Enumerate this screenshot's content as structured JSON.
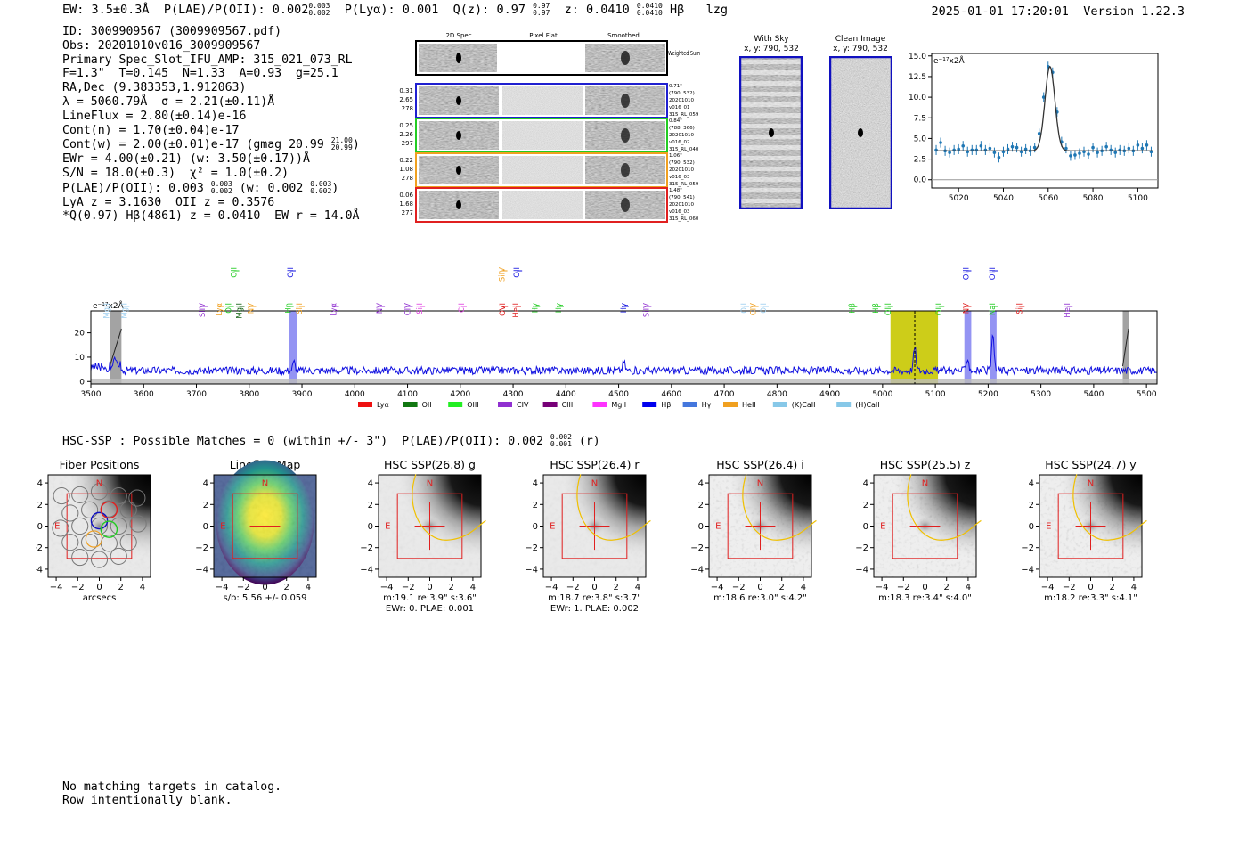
{
  "header": {
    "ew": "EW: 3.5±0.3Å",
    "plae": "P(LAE)/P(OII): 0.002",
    "plae_hi": "0.003",
    "plae_lo": "0.002",
    "plya": "P(Lyα): 0.001",
    "qz": "Q(z): 0.97",
    "qz_hi": "0.97",
    "qz_lo": "0.97",
    "z": "z: 0.0410",
    "z_hi": "0.0410",
    "z_lo": "0.0410",
    "line": "Hβ   lzg",
    "timestamp": "2025-01-01 17:20:01",
    "version": "Version 1.22.3"
  },
  "info": {
    "id": "ID: 3009909567 (3009909567.pdf)",
    "obs": "Obs: 20201010v016_3009909567",
    "primary": "Primary Spec_Slot_IFU_AMP: 315_021_073_RL",
    "params": "F=1.3\"  T=0.145  N=1.33  A=0.93  g=25.1",
    "radec": "RA,Dec (9.383353,1.912063)",
    "lambda": "λ = 5060.79Å  σ = 2.21(±0.11)Å",
    "lineflux": "LineFlux = 2.80(±0.14)e-16",
    "contn": "Cont(n) = 1.70(±0.04)e-17",
    "contw": "Cont(w) = 2.00(±0.01)e-17 (gmag 20.99",
    "contw_hi": "21.00",
    "contw_lo": "20.99",
    "contw_end": ")",
    "ewr": "EWr = 4.00(±0.21) (w: 3.50(±0.17))Å",
    "sn": "S/N = 18.0(±0.3)  χ² = 1.0(±0.2)",
    "plae2": "P(LAE)/P(OII): 0.003",
    "plae2_hi": "0.003",
    "plae2_lo": "0.002",
    "plae2_w": "(w: 0.002",
    "plae2_w_hi": "0.003",
    "plae2_w_lo": "0.002",
    "plae2_end": ")",
    "lya": "LyA z = 3.1630  OII z = 0.3576",
    "q": "*Q(0.97) Hβ(4861) z = 0.0410  EW r = 14.0Å"
  },
  "cutouts": {
    "col_titles": [
      "2D Spec",
      "Pixel Flat",
      "Smoothed"
    ],
    "weighted_sum_label": "Weighted Sum",
    "rows": [
      {
        "left": [
          "0.31",
          "2.65",
          "278"
        ],
        "right": [
          "0.71\"",
          "(790, 532)",
          "20201010",
          "v016_01",
          "315_RL_059"
        ],
        "color": "#1f1fd0"
      },
      {
        "left": [
          "0.25",
          "2.26",
          "297"
        ],
        "right": [
          "0.84\"",
          "(788, 366)",
          "20201010",
          "v016_02",
          "315_RL_040"
        ],
        "color": "#22cc22"
      },
      {
        "left": [
          "0.22",
          "1.08",
          "278"
        ],
        "right": [
          "1.06\"",
          "(790, 532)",
          "20201010",
          "v016_03",
          "315_RL_059"
        ],
        "color": "#f0a020"
      },
      {
        "left": [
          "0.06",
          "1.68",
          "277"
        ],
        "right": [
          "1.48\"",
          "(790, 541)",
          "20201010",
          "v016_03",
          "315_RL_060"
        ],
        "color": "#e02020"
      }
    ]
  },
  "sky": {
    "with_sky_title": "With Sky",
    "with_sky_xy": "x, y: 790, 532",
    "clean_title": "Clean Image",
    "clean_xy": "x, y: 790, 532"
  },
  "colors": {
    "spectrum": "#1010e0",
    "fit_point": "#1f77b4",
    "highlight_yellow": "#c8c800",
    "highlight_blue": "#6666ee",
    "red_box": "#e02020",
    "ellipse": "#f0c000"
  },
  "line_labels": [
    {
      "name": "MgII",
      "w": 3535,
      "color": "#a0d0f0",
      "row": 2
    },
    {
      "name": "MgII",
      "w": 3568,
      "color": "#a0d0f0",
      "row": 2
    },
    {
      "name": "SiIV",
      "w": 3716,
      "color": "#9030d0",
      "row": 2
    },
    {
      "name": "Lyα",
      "w": 3748,
      "color": "#f0a020",
      "row": 2
    },
    {
      "name": "OII",
      "w": 3766,
      "color": "#22cc22",
      "row": 2
    },
    {
      "name": "MgII",
      "w": 3786,
      "color": "#106010",
      "row": 2
    },
    {
      "name": "NV",
      "w": 3808,
      "color": "#f0a020",
      "row": 2
    },
    {
      "name": "OII",
      "w": 3776,
      "color": "#22cc22",
      "row": 1
    },
    {
      "name": "OII",
      "w": 3883,
      "color": "#1010e0",
      "row": 1
    },
    {
      "name": "Hη",
      "w": 3879,
      "color": "#22cc22",
      "row": 2
    },
    {
      "name": "SiII",
      "w": 3900,
      "color": "#f0a020",
      "row": 2
    },
    {
      "name": "Lyα",
      "w": 3965,
      "color": "#9030d0",
      "row": 2
    },
    {
      "name": "NV",
      "w": 4052,
      "color": "#9030d0",
      "row": 2
    },
    {
      "name": "CIV",
      "w": 4105,
      "color": "#9030d0",
      "row": 2
    },
    {
      "name": "SiII",
      "w": 4128,
      "color": "#e040e0",
      "row": 2
    },
    {
      "name": "CII",
      "w": 4207,
      "color": "#e040e0",
      "row": 2
    },
    {
      "name": "SiIV",
      "w": 4284,
      "color": "#f0a020",
      "row": 1
    },
    {
      "name": "OII",
      "w": 4312,
      "color": "#1010e0",
      "row": 1
    },
    {
      "name": "OVI",
      "w": 4285,
      "color": "#e02020",
      "row": 2
    },
    {
      "name": "HeII",
      "w": 4310,
      "color": "#e02020",
      "row": 2
    },
    {
      "name": "Hγ",
      "w": 4346,
      "color": "#22cc22",
      "row": 2
    },
    {
      "name": "Hγ",
      "w": 4391,
      "color": "#22cc22",
      "row": 2
    },
    {
      "name": "Hγ",
      "w": 4514,
      "color": "#1010e0",
      "row": 2
    },
    {
      "name": "SiIV",
      "w": 4557,
      "color": "#9030d0",
      "row": 2
    },
    {
      "name": "OII",
      "w": 4742,
      "color": "#a0d0f0",
      "row": 2
    },
    {
      "name": "CIV",
      "w": 4760,
      "color": "#f0a020",
      "row": 2
    },
    {
      "name": "OII",
      "w": 4779,
      "color": "#a0d0f0",
      "row": 2
    },
    {
      "name": "Hβ",
      "w": 4947,
      "color": "#22cc22",
      "row": 2
    },
    {
      "name": "Hβ",
      "w": 4992,
      "color": "#22cc22",
      "row": 2
    },
    {
      "name": "OIII",
      "w": 5015,
      "color": "#22cc22",
      "row": 2
    },
    {
      "name": "OIII",
      "w": 5112,
      "color": "#22cc22",
      "row": 2
    },
    {
      "name": "OIII",
      "w": 5163,
      "color": "#1010e0",
      "row": 1
    },
    {
      "name": "OIII",
      "w": 5213,
      "color": "#1010e0",
      "row": 1
    },
    {
      "name": "NV",
      "w": 5163,
      "color": "#e02020",
      "row": 2
    },
    {
      "name": "NaI",
      "w": 5213,
      "color": "#22cc22",
      "row": 2
    },
    {
      "name": "SiII",
      "w": 5264,
      "color": "#e02020",
      "row": 2
    },
    {
      "name": "HeII",
      "w": 5355,
      "color": "#9030d0",
      "row": 2
    }
  ],
  "legend": [
    {
      "label": "Lyα",
      "color": "#ee1111"
    },
    {
      "label": "OII",
      "color": "#117711"
    },
    {
      "label": "OIII",
      "color": "#22ee22"
    },
    {
      "label": "CIV",
      "color": "#9030d0"
    },
    {
      "label": "CIII",
      "color": "#770077"
    },
    {
      "label": "MgII",
      "color": "#ff33ff"
    },
    {
      "label": "Hβ",
      "color": "#0000ee"
    },
    {
      "label": "Hγ",
      "color": "#4477dd"
    },
    {
      "label": "HeII",
      "color": "#f0a020"
    },
    {
      "label": "(K)CaII",
      "color": "#87c8e8"
    },
    {
      "label": "(H)CaII",
      "color": "#87c8e8"
    }
  ],
  "hsc": {
    "line": "HSC-SSP : Possible Matches = 0 (within +/- 3\")  P(LAE)/P(OII): 0.002",
    "hi": "0.002",
    "lo": "0.001",
    "end": "(r)",
    "panels": [
      {
        "title": "Fiber Positions",
        "cap1": "arcsecs",
        "cap2": ""
      },
      {
        "title": "Lineflux Map",
        "cap1": "s/b: 5.56 +/- 0.059",
        "cap2": ""
      },
      {
        "title": "HSC SSP(26.8) g",
        "cap1": "m:19.1  re:3.9\"  s:3.6\"",
        "cap2": "EWr: 0. PLAE: 0.001"
      },
      {
        "title": "HSC SSP(26.4) r",
        "cap1": "m:18.7  re:3.8\"  s:3.7\"",
        "cap2": "EWr: 1. PLAE: 0.002"
      },
      {
        "title": "HSC SSP(26.4) i",
        "cap1": "m:18.6  re:3.0\"  s:4.2\"",
        "cap2": ""
      },
      {
        "title": "HSC SSP(25.5) z",
        "cap1": "m:18.3  re:3.4\"  s:4.0\"",
        "cap2": ""
      },
      {
        "title": "HSC SSP(24.7) y",
        "cap1": "m:18.2  re:3.3\"  s:4.1\"",
        "cap2": ""
      }
    ],
    "north": "N",
    "east": "E"
  },
  "footer": {
    "line1": "No matching targets in catalog.",
    "line2": "Row intentionally blank."
  },
  "chart_data": [
    {
      "type": "scatter",
      "title": "",
      "xlabel": "",
      "ylabel": "e⁻¹⁷x2Å",
      "xlim": [
        5008,
        5109
      ],
      "ylim": [
        -1,
        15.3
      ],
      "x_ticks": [
        5020,
        5040,
        5060,
        5080,
        5100
      ],
      "y_ticks": [
        0.0,
        2.5,
        5.0,
        7.5,
        10.0,
        12.5,
        15.0
      ],
      "series": [
        {
          "style": "errorbar-points",
          "x": [
            5010,
            5012,
            5014,
            5016,
            5018,
            5020,
            5022,
            5024,
            5026,
            5028,
            5030,
            5032,
            5034,
            5036,
            5038,
            5040,
            5042,
            5044,
            5046,
            5048,
            5050,
            5052,
            5054,
            5056,
            5058,
            5060,
            5062,
            5064,
            5066,
            5068,
            5070,
            5072,
            5074,
            5076,
            5078,
            5080,
            5082,
            5084,
            5086,
            5088,
            5090,
            5092,
            5094,
            5096,
            5098,
            5100,
            5102,
            5104,
            5106
          ],
          "y": [
            3.6,
            4.5,
            3.5,
            3.3,
            3.6,
            3.7,
            4.1,
            3.4,
            3.6,
            3.6,
            4.1,
            3.6,
            3.8,
            3.3,
            2.7,
            3.4,
            3.7,
            4.0,
            3.9,
            3.4,
            3.7,
            3.5,
            3.9,
            5.6,
            10.0,
            13.7,
            13.0,
            8.2,
            4.6,
            3.8,
            2.9,
            3.0,
            3.2,
            3.4,
            3.1,
            3.9,
            3.3,
            3.5,
            4.0,
            3.6,
            3.3,
            3.6,
            3.5,
            3.8,
            3.5,
            4.2,
            3.8,
            4.2,
            3.4
          ],
          "yerr": 0.6
        },
        {
          "style": "line",
          "model": "gaussian",
          "continuum": 3.5,
          "peak": 13.7,
          "center": 5060.8,
          "sigma": 2.21
        }
      ]
    },
    {
      "type": "line",
      "title": "",
      "xlabel": "",
      "ylabel": "e⁻¹⁷x2Å",
      "xlim": [
        3500,
        5520
      ],
      "ylim": [
        -1,
        29
      ],
      "x_ticks": [
        3500,
        3600,
        3700,
        3800,
        3900,
        4000,
        4100,
        4200,
        4300,
        4400,
        4500,
        4600,
        4700,
        4800,
        4900,
        5000,
        5100,
        5200,
        5300,
        5400,
        5500
      ],
      "y_ticks": [
        0,
        10,
        20
      ],
      "continuum": 4.5,
      "emission": [
        {
          "center": 3545,
          "peak": 9
        },
        {
          "center": 3885,
          "peak": 8
        },
        {
          "center": 4510,
          "peak": 8
        },
        {
          "center": 5061,
          "peak": 14
        },
        {
          "center": 5161,
          "peak": 10
        },
        {
          "center": 5209,
          "peak": 18
        }
      ],
      "highlights": [
        {
          "range": [
            5015,
            5105
          ],
          "kind": "yellow"
        },
        {
          "range": [
            3875,
            3890
          ],
          "kind": "blue"
        },
        {
          "range": [
            5155,
            5168
          ],
          "kind": "blue"
        },
        {
          "range": [
            5203,
            5216
          ],
          "kind": "blue"
        },
        {
          "range": [
            3536,
            3558
          ],
          "kind": "gray"
        },
        {
          "range": [
            5455,
            5466
          ],
          "kind": "gray"
        }
      ],
      "marker": 5061
    }
  ]
}
